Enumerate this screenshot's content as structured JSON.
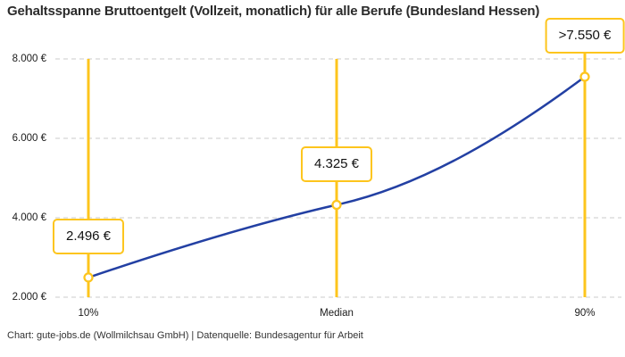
{
  "footer": {
    "credit": "Chart: gute-jobs.de (Wollmilchsau GmbH) | Datenquelle: Bundesagentur für Arbeit"
  },
  "colors": {
    "accent_yellow": "#FDC51D",
    "line_blue": "#2340A3",
    "grid_gray": "#CBCBCB",
    "title_text": "#2B2B2B",
    "tick_text": "#1A1A1A",
    "annotation_text": "#111111",
    "footer_text": "#333333",
    "background": "#FFFFFF"
  },
  "chart_data": {
    "type": "line",
    "title": "Gehaltsspanne Bruttoentgelt (Vollzeit, monatlich) für alle Berufe (Bundesland Hessen)",
    "categories": [
      "10%",
      "Median",
      "90%"
    ],
    "values": [
      2496,
      4325,
      7550
    ],
    "point_labels": [
      "2.496 €",
      "4.325 €",
      ">7.550 €"
    ],
    "ylim": [
      2000,
      8000
    ],
    "yticks": [
      2000,
      4000,
      6000,
      8000
    ],
    "ytick_labels": [
      "2.000 €",
      "4.000 €",
      "6.000 €",
      "8.000 €"
    ],
    "xlabel": "",
    "ylabel": "",
    "grid": "horizontal-dashed",
    "legend": "none",
    "marker_style": "open-circle",
    "series": [
      {
        "name": "Bruttoentgelt",
        "values": [
          2496,
          4325,
          7550
        ]
      }
    ]
  }
}
